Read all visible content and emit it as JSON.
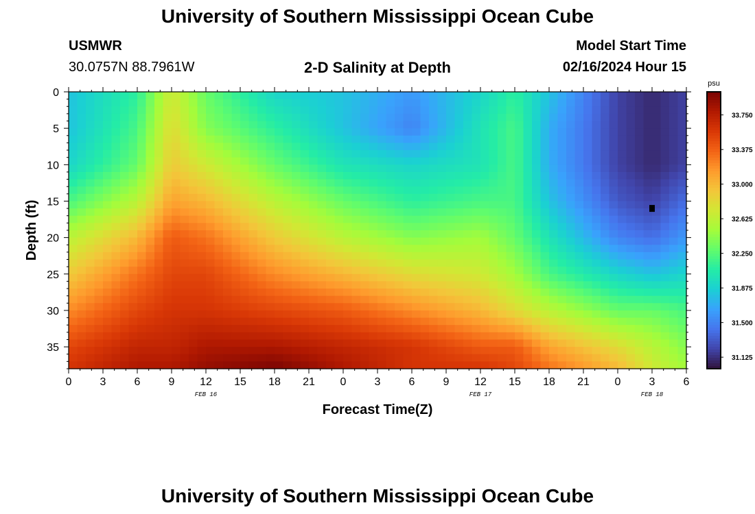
{
  "header": {
    "title_top": "University of Southern Mississippi Ocean Cube",
    "title_bottom": "University of Southern Mississippi Ocean Cube",
    "station_id": "USMWR",
    "station_coords": "30.0757N  88.7961W",
    "plot_title": "2-D Salinity at Depth",
    "model_start_label": "Model Start Time",
    "model_start_value": "02/16/2024 Hour 15"
  },
  "chart_data": {
    "type": "heatmap",
    "title": "2-D Salinity at Depth",
    "xlabel": "Forecast Time(Z)",
    "ylabel": "Depth (ft)",
    "x_tick_labels": [
      "0",
      "3",
      "6",
      "9",
      "12",
      "15",
      "18",
      "21",
      "0",
      "3",
      "6",
      "9",
      "12",
      "15",
      "18",
      "21",
      "0",
      "3",
      "6"
    ],
    "x_range_hours": [
      0,
      54
    ],
    "date_labels": [
      {
        "label": "FEB 16",
        "hour": 12
      },
      {
        "label": "FEB 17",
        "hour": 36
      },
      {
        "label": "FEB 18",
        "hour": 51
      }
    ],
    "y_tick_labels": [
      "0",
      "5",
      "10",
      "15",
      "20",
      "25",
      "30",
      "35"
    ],
    "ylim": [
      0,
      38
    ],
    "y_inverted": true,
    "colorbar": {
      "unit": "psu",
      "range": [
        31.0,
        34.0
      ],
      "tick_labels": [
        "33.750",
        "33.375",
        "33.000",
        "32.625",
        "32.250",
        "31.875",
        "31.500",
        "31.125"
      ],
      "tick_values": [
        33.75,
        33.375,
        33.0,
        32.625,
        32.25,
        31.875,
        31.5,
        31.125
      ],
      "colors": [
        "#30123b",
        "#4145ab",
        "#4675ed",
        "#39a2fc",
        "#1bcfd4",
        "#24eca6",
        "#61fc6c",
        "#a4fc3b",
        "#d1e834",
        "#f3c63a",
        "#fe9b2d",
        "#f36315",
        "#d93806",
        "#b11901",
        "#7a0403"
      ]
    },
    "marker": {
      "hour": 51,
      "depth_ft": 16,
      "color": "#000000"
    },
    "time_hours": [
      0,
      6,
      9,
      12,
      18,
      24,
      30,
      36,
      39,
      42,
      48,
      51,
      54
    ],
    "depth_ft": [
      0,
      5,
      10,
      15,
      20,
      25,
      30,
      35,
      38
    ],
    "salinity_psu": [
      [
        31.8,
        32.1,
        32.7,
        32.3,
        31.9,
        31.8,
        31.6,
        31.9,
        32.1,
        31.8,
        31.2,
        31.1,
        31.2
      ],
      [
        31.8,
        32.2,
        32.8,
        32.4,
        32.1,
        31.8,
        31.5,
        32.0,
        32.2,
        31.7,
        31.2,
        31.1,
        31.2
      ],
      [
        31.9,
        32.3,
        32.9,
        32.7,
        32.3,
        32.0,
        31.9,
        32.0,
        32.2,
        31.7,
        31.2,
        31.1,
        31.2
      ],
      [
        32.2,
        32.6,
        33.1,
        33.0,
        32.6,
        32.3,
        32.1,
        32.2,
        32.2,
        31.8,
        31.3,
        31.2,
        31.4
      ],
      [
        32.6,
        33.0,
        33.4,
        33.3,
        32.9,
        32.6,
        32.4,
        32.5,
        32.3,
        32.0,
        31.5,
        31.4,
        31.6
      ],
      [
        32.9,
        33.3,
        33.5,
        33.5,
        33.2,
        33.0,
        32.8,
        32.7,
        32.5,
        32.2,
        31.9,
        31.8,
        31.9
      ],
      [
        33.2,
        33.5,
        33.6,
        33.6,
        33.5,
        33.4,
        33.2,
        33.0,
        32.8,
        32.6,
        32.3,
        32.3,
        32.2
      ],
      [
        33.5,
        33.7,
        33.7,
        33.8,
        33.8,
        33.7,
        33.6,
        33.4,
        33.4,
        33.1,
        32.8,
        32.6,
        32.4
      ],
      [
        33.6,
        33.8,
        33.8,
        33.9,
        34.0,
        33.8,
        33.6,
        33.6,
        33.5,
        33.3,
        33.0,
        32.7,
        32.5
      ]
    ]
  }
}
